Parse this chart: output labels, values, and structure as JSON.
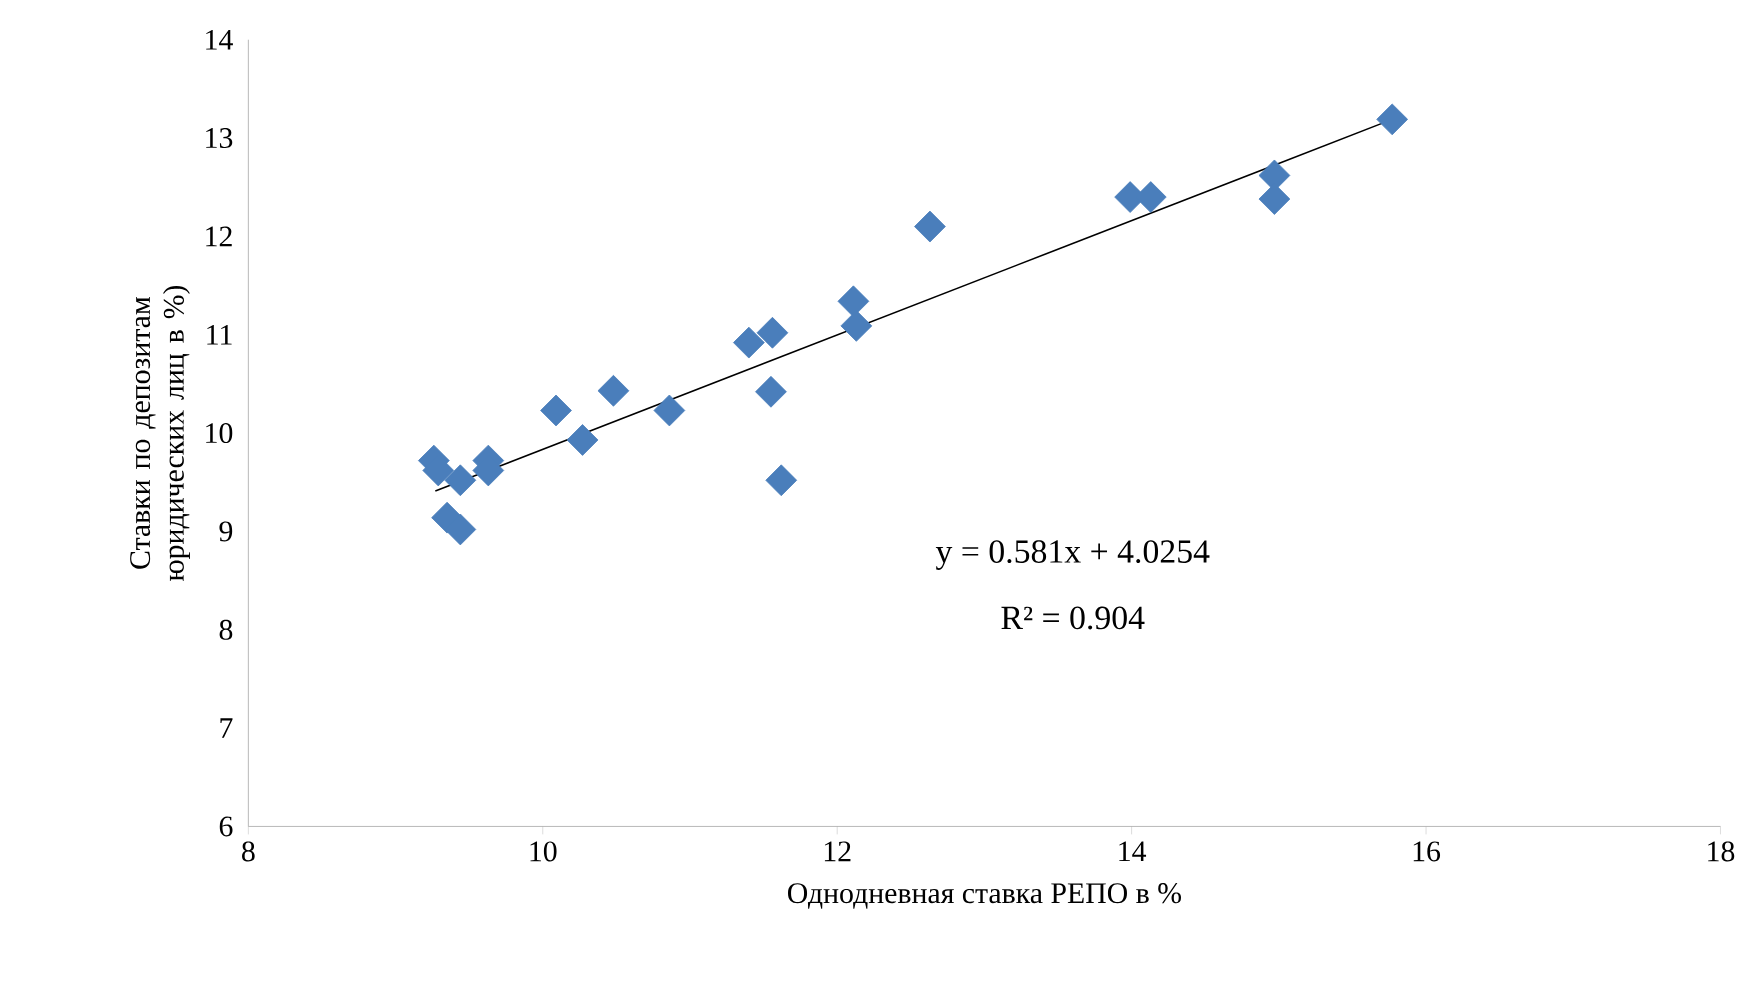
{
  "chart_data": {
    "type": "scatter",
    "xlabel": "Однодневная ставка РЕПО в %",
    "ylabel": "Ставки по депозитам юридических лиц в %)",
    "xlim": [
      8,
      18
    ],
    "xticks": [
      8,
      10,
      12,
      14,
      16,
      18
    ],
    "ylim": [
      6,
      14
    ],
    "yticks": [
      6,
      7,
      8,
      9,
      10,
      11,
      12,
      13,
      14
    ],
    "grid": false,
    "marker": "diamond",
    "series": [
      {
        "color": "#4a7ebb",
        "x": [
          9.26,
          9.29,
          9.44,
          9.63,
          9.63,
          9.35,
          9.44,
          10.09,
          10.27,
          10.48,
          10.86,
          11.4,
          11.56,
          11.55,
          11.62,
          12.11,
          12.13,
          12.63,
          13.99,
          14.13,
          14.97,
          14.97,
          15.77
        ],
        "values": [
          9.72,
          9.62,
          9.52,
          9.72,
          9.62,
          9.14,
          9.02,
          10.23,
          9.93,
          10.43,
          10.23,
          10.92,
          11.02,
          10.42,
          9.52,
          11.34,
          11.09,
          12.1,
          12.4,
          12.4,
          12.62,
          12.38,
          13.19
        ]
      },
      {
        "type": "line",
        "color": "#000000",
        "marker": "none",
        "x": [
          9.27,
          15.77
        ],
        "values": [
          9.41,
          13.19
        ]
      }
    ],
    "annotations": [
      "y = 0.581x + 4.0254",
      "R² = 0.904"
    ]
  }
}
